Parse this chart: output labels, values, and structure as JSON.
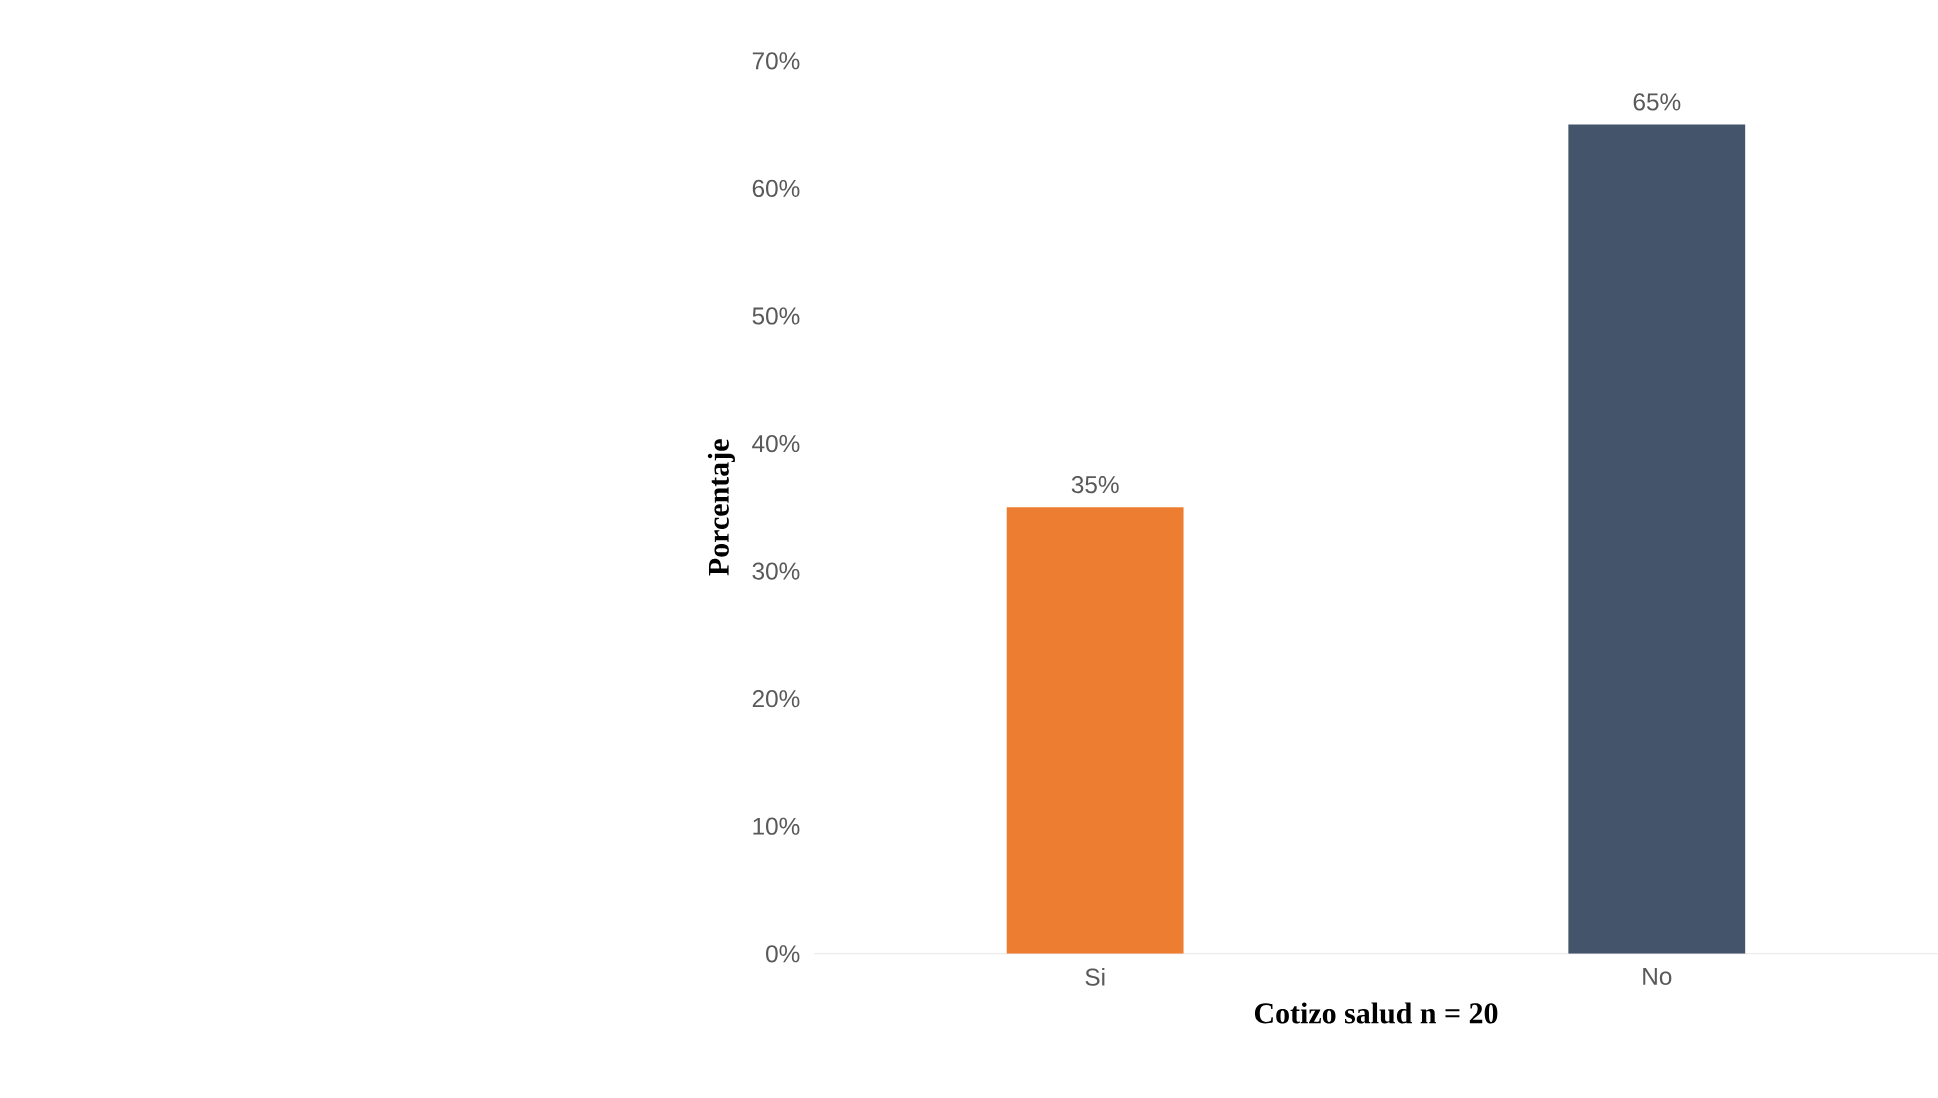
{
  "chart_data": {
    "type": "bar",
    "xlabel": "Cotizo salud    n = 20",
    "ylabel": "Porcentaje",
    "categories": [
      "Si",
      "No"
    ],
    "values": [
      35,
      65
    ],
    "colors": [
      "#ed7d31",
      "#44546a"
    ],
    "value_labels": [
      "35%",
      "65%"
    ],
    "ylim": [
      0,
      70
    ],
    "yticks": [
      {
        "value": 0,
        "label": "0%"
      },
      {
        "value": 10,
        "label": "10%"
      },
      {
        "value": 20,
        "label": "20%"
      },
      {
        "value": 30,
        "label": "30%"
      },
      {
        "value": 40,
        "label": "40%"
      },
      {
        "value": 50,
        "label": "50%"
      },
      {
        "value": 60,
        "label": "60%"
      },
      {
        "value": 70,
        "label": "70%"
      }
    ]
  }
}
